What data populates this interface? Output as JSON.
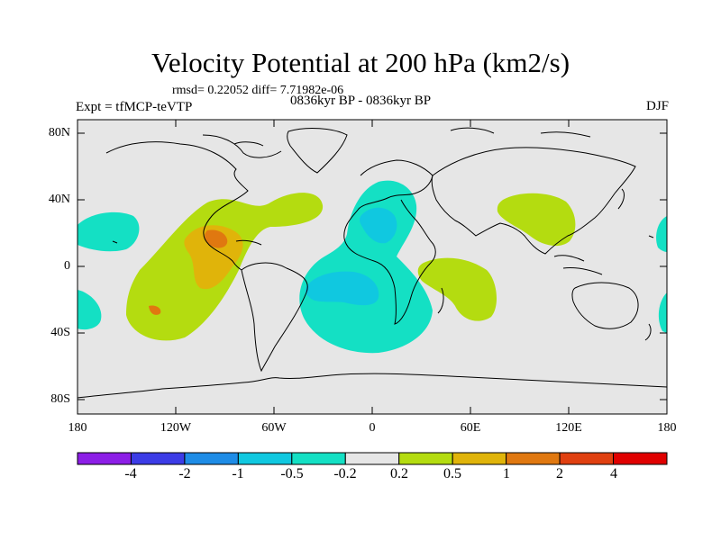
{
  "title": "Velocity Potential at 200 hPa (km2/s)",
  "stats": "rmsd= 0.22052 diff= 7.71982e-06",
  "experiment": "Expt = tfMCP-teVTP",
  "period": "0836kyr BP - 0836kyr BP",
  "season": "DJF",
  "y_ticks": [
    "80N",
    "40N",
    "0",
    "40S",
    "80S"
  ],
  "x_ticks": [
    "180",
    "120W",
    "60W",
    "0",
    "60E",
    "120E",
    "180"
  ],
  "colorbar": {
    "labels": [
      "-4",
      "-2",
      "-1",
      "-0.5",
      "-0.2",
      "0.2",
      "0.5",
      "1",
      "2",
      "4"
    ],
    "colors": [
      "#8c1ee6",
      "#3c3ce6",
      "#1e8ce6",
      "#10c8e0",
      "#14e0c4",
      "#e6e6e6",
      "#b4dc10",
      "#e0b40a",
      "#e07810",
      "#e04010",
      "#e00000"
    ]
  },
  "colors": {
    "background": "#e6e6e6",
    "positive_light": "#b4dc10",
    "positive_mid": "#e0b40a",
    "positive_high": "#e07810",
    "negative_light": "#14e0c4",
    "negative_mid": "#10c8e0"
  }
}
